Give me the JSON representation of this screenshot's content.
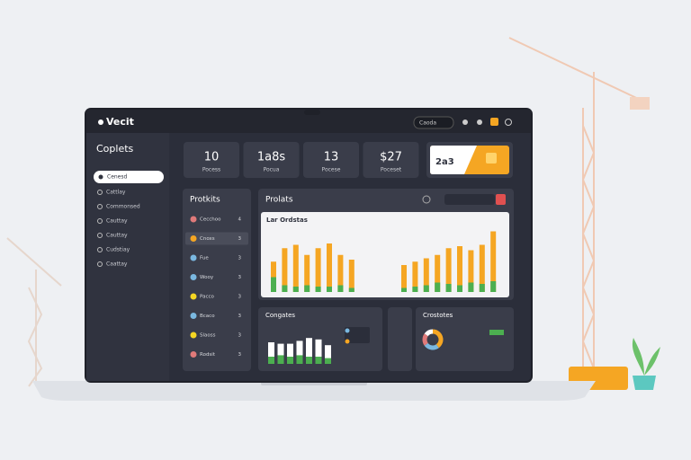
{
  "brand": "Vecit",
  "search": "Caoda",
  "sidebar": {
    "title": "Coplets",
    "active": "Cenesd",
    "items": [
      "Cattlay",
      "Commonsed",
      "Cauttay",
      "Cauttay",
      "Cudstiay",
      "Caattay"
    ]
  },
  "stats": [
    {
      "value": "10",
      "label": "Pocess"
    },
    {
      "value": "1a8s",
      "label": "Pocua"
    },
    {
      "value": "13",
      "label": "Pocese"
    },
    {
      "value": "$27",
      "label": "Poceset"
    }
  ],
  "promo": {
    "value": "2a3"
  },
  "list_panel": {
    "title": "Protkits",
    "items": [
      {
        "label": "Cecchoo",
        "count": "4",
        "color": "#e07a7a"
      },
      {
        "label": "Cnoxs",
        "count": "3",
        "color": "#f5a623"
      },
      {
        "label": "Fue",
        "count": "3",
        "color": "#7ab8e0"
      },
      {
        "label": "Wooy",
        "count": "3",
        "color": "#7ab8e0"
      },
      {
        "label": "Pacco",
        "count": "3",
        "color": "#f5d623"
      },
      {
        "label": "Bcaco",
        "count": "3",
        "color": "#7ab8e0"
      },
      {
        "label": "Slaoss",
        "count": "3",
        "color": "#f5d623"
      },
      {
        "label": "Rodsit",
        "count": "3",
        "color": "#e07a7a"
      }
    ]
  },
  "main_chart": {
    "title": "Prolats",
    "subtitle": "Lar Ordstas",
    "left_values": [
      45,
      65,
      70,
      55,
      65,
      72,
      55,
      48
    ],
    "left_base": [
      22,
      10,
      8,
      10,
      8,
      8,
      10,
      6
    ],
    "right_values": [
      40,
      45,
      50,
      55,
      65,
      68,
      62,
      70,
      90
    ],
    "right_base": [
      6,
      8,
      10,
      14,
      12,
      10,
      14,
      12,
      16
    ]
  },
  "small_chart": {
    "title": "Congates",
    "values": [
      30,
      28,
      28,
      32,
      36,
      34,
      26
    ],
    "base": [
      10,
      12,
      10,
      12,
      10,
      10,
      8
    ]
  },
  "donut_panel": {
    "title": "Crostotes",
    "values": [
      40,
      25,
      20,
      15
    ],
    "colors": [
      "#f5a623",
      "#7ab8e0",
      "#e07a7a",
      "#ffffff"
    ]
  }
}
